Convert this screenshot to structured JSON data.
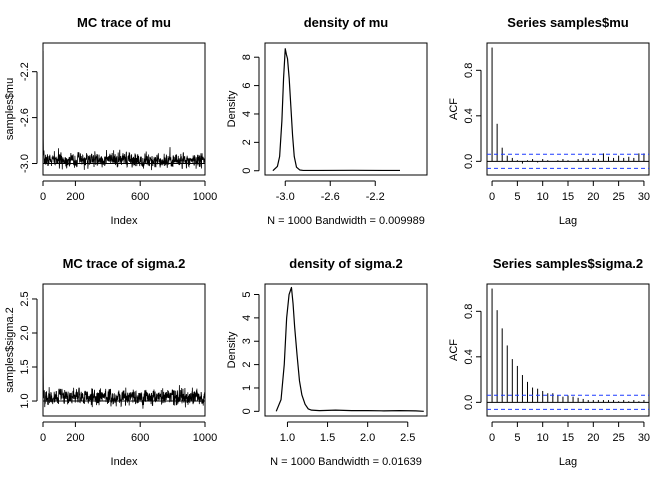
{
  "chart_data": [
    {
      "id": "trace_mu",
      "type": "line",
      "title": "MC trace of mu",
      "xlabel": "Index",
      "ylabel": "samples$mu",
      "xlim": [
        0,
        1000
      ],
      "ylim": [
        -3.1,
        -1.95
      ],
      "xticks": [
        0,
        200,
        600,
        1000
      ],
      "yticks": [
        -3.0,
        -2.6,
        -2.2
      ],
      "ytick_labels": [
        "-3.0",
        "-2.6",
        "-2.2"
      ],
      "hline": -3.0,
      "series": [
        {
          "start": -2.02,
          "mean": -2.97,
          "sd": 0.028,
          "n": 1000,
          "seed": 7
        }
      ]
    },
    {
      "id": "density_mu",
      "type": "line",
      "title": "density of mu",
      "xlabel": "N = 1000   Bandwidth = 0.009989",
      "ylabel": "Density",
      "xlim": [
        -3.18,
        -1.74
      ],
      "ylim": [
        -0.3,
        9.0
      ],
      "xticks": [
        -3.0,
        -2.6,
        -2.2
      ],
      "xtick_labels": [
        "-3.0",
        "-2.6",
        "-2.2"
      ],
      "yticks": [
        0,
        2,
        4,
        6,
        8
      ],
      "x": [
        -3.11,
        -3.07,
        -3.05,
        -3.03,
        -3.015,
        -3.0,
        -2.99,
        -2.98,
        -2.965,
        -2.95,
        -2.935,
        -2.92,
        -2.9,
        -2.87,
        -2.84,
        -2.7,
        -2.4,
        -2.1,
        -1.98
      ],
      "y": [
        0.0,
        0.3,
        1.0,
        3.5,
        6.5,
        8.6,
        8.2,
        7.9,
        6.5,
        4.5,
        2.5,
        1.0,
        0.25,
        0.05,
        0.02,
        0.02,
        0.03,
        0.02,
        0.02
      ]
    },
    {
      "id": "acf_mu",
      "type": "bar",
      "title": "Series  samples$mu",
      "xlabel": "Lag",
      "ylabel": "ACF",
      "xlim": [
        -1,
        31
      ],
      "ylim": [
        -0.12,
        1.04
      ],
      "xticks": [
        0,
        5,
        10,
        15,
        20,
        25,
        30
      ],
      "yticks": [
        0.0,
        0.4,
        0.8
      ],
      "ytick_labels": [
        "0.0",
        "0.4",
        "0.8"
      ],
      "conf": 0.062,
      "x": [
        0,
        1,
        2,
        3,
        4,
        5,
        6,
        7,
        8,
        9,
        10,
        11,
        12,
        13,
        14,
        15,
        16,
        17,
        18,
        19,
        20,
        21,
        22,
        23,
        24,
        25,
        26,
        27,
        28,
        29,
        30
      ],
      "values": [
        1.0,
        0.33,
        0.12,
        0.05,
        0.03,
        0.01,
        -0.02,
        0.01,
        0.02,
        -0.01,
        0.02,
        0.01,
        0.0,
        0.01,
        0.02,
        0.01,
        0.0,
        0.02,
        0.03,
        0.02,
        0.03,
        0.02,
        0.07,
        0.04,
        0.03,
        0.05,
        0.03,
        0.04,
        0.03,
        0.07,
        0.07
      ]
    },
    {
      "id": "trace_sigma",
      "type": "line",
      "title": "MC trace of sigma.2",
      "xlabel": "Index",
      "ylabel": "samples$sigma.2",
      "xlim": [
        0,
        1000
      ],
      "ylim": [
        0.78,
        2.72
      ],
      "xticks": [
        0,
        200,
        600,
        1000
      ],
      "yticks": [
        1.0,
        1.5,
        2.0,
        2.5
      ],
      "ytick_labels": [
        "1.0",
        "1.5",
        "2.0",
        "2.5"
      ],
      "hline": 1.0,
      "series": [
        {
          "start": 2.65,
          "mean": 1.06,
          "sd": 0.055,
          "n": 1000,
          "seed": 19
        }
      ]
    },
    {
      "id": "density_sigma",
      "type": "line",
      "title": "density of sigma.2",
      "xlabel": "N = 1000   Bandwidth = 0.01639",
      "ylabel": "Density",
      "xlim": [
        0.72,
        2.74
      ],
      "ylim": [
        -0.2,
        5.45
      ],
      "xticks": [
        1.0,
        1.5,
        2.0,
        2.5
      ],
      "xtick_labels": [
        "1.0",
        "1.5",
        "2.0",
        "2.5"
      ],
      "yticks": [
        0,
        1,
        2,
        3,
        4,
        5
      ],
      "x": [
        0.86,
        0.92,
        0.96,
        0.99,
        1.02,
        1.05,
        1.07,
        1.09,
        1.12,
        1.15,
        1.18,
        1.22,
        1.26,
        1.3,
        1.4,
        1.6,
        1.8,
        2.0,
        2.2,
        2.4,
        2.6,
        2.7
      ],
      "y": [
        0.0,
        0.5,
        2.0,
        4.0,
        5.0,
        5.3,
        4.6,
        3.6,
        2.4,
        1.3,
        0.7,
        0.3,
        0.1,
        0.05,
        0.03,
        0.05,
        0.03,
        0.03,
        0.02,
        0.03,
        0.02,
        0.0
      ]
    },
    {
      "id": "acf_sigma",
      "type": "bar",
      "title": "Series  samples$sigma.2",
      "xlabel": "Lag",
      "ylabel": "ACF",
      "xlim": [
        -1,
        31
      ],
      "ylim": [
        -0.12,
        1.04
      ],
      "xticks": [
        0,
        5,
        10,
        15,
        20,
        25,
        30
      ],
      "yticks": [
        0.0,
        0.4,
        0.8
      ],
      "ytick_labels": [
        "0.0",
        "0.4",
        "0.8"
      ],
      "conf": 0.062,
      "x": [
        0,
        1,
        2,
        3,
        4,
        5,
        6,
        7,
        8,
        9,
        10,
        11,
        12,
        13,
        14,
        15,
        16,
        17,
        18,
        19,
        20,
        21,
        22,
        23,
        24,
        25,
        26,
        27,
        28,
        29,
        30
      ],
      "values": [
        1.0,
        0.81,
        0.65,
        0.5,
        0.38,
        0.32,
        0.24,
        0.18,
        0.13,
        0.12,
        0.1,
        0.08,
        0.08,
        0.06,
        0.05,
        0.06,
        0.05,
        0.04,
        0.03,
        0.02,
        0.02,
        0.02,
        0.02,
        0.02,
        0.02,
        0.01,
        0.02,
        0.01,
        0.02,
        0.01,
        0.02
      ]
    }
  ]
}
